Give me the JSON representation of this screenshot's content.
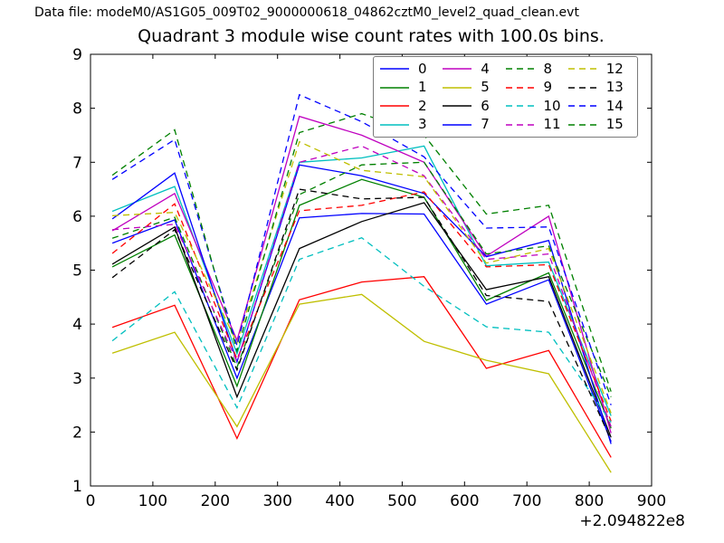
{
  "header": {
    "data_file": "Data file: modeM0/AS1G05_009T02_9000000618_04862cztM0_level2_quad_clean.evt"
  },
  "chart_data": {
    "type": "line",
    "title": "Quadrant 3 module wise count rates with 100.0s bins.",
    "xlabel": "",
    "ylabel": "",
    "x_offset_label": "+2.094822e8",
    "xlim": [
      0,
      900
    ],
    "ylim": [
      1,
      9
    ],
    "x_ticks": [
      0,
      100,
      200,
      300,
      400,
      500,
      600,
      700,
      800,
      900
    ],
    "y_ticks": [
      1,
      2,
      3,
      4,
      5,
      6,
      7,
      8,
      9
    ],
    "grid": false,
    "legend_position": "upper right",
    "legend_columns": 4,
    "frame_color": "#000000",
    "x": [
      35,
      135,
      235,
      335,
      435,
      535,
      635,
      735,
      835
    ],
    "series": [
      {
        "name": "0",
        "color": "#0000ff",
        "dash": false,
        "values": [
          5.5,
          5.93,
          3.0,
          5.97,
          6.05,
          6.04,
          4.37,
          4.82,
          1.82
        ]
      },
      {
        "name": "1",
        "color": "#008000",
        "dash": false,
        "values": [
          5.06,
          5.65,
          2.85,
          6.2,
          6.68,
          6.35,
          4.44,
          4.95,
          2.07
        ]
      },
      {
        "name": "2",
        "color": "#ff0000",
        "dash": false,
        "values": [
          3.94,
          4.35,
          1.88,
          4.45,
          4.78,
          4.88,
          3.18,
          3.51,
          1.53
        ]
      },
      {
        "name": "3",
        "color": "#00bfbf",
        "dash": false,
        "values": [
          6.09,
          6.55,
          3.45,
          7.0,
          7.08,
          7.3,
          5.08,
          5.15,
          2.3
        ]
      },
      {
        "name": "4",
        "color": "#bf00bf",
        "dash": false,
        "values": [
          5.73,
          6.42,
          3.7,
          7.85,
          7.5,
          7.0,
          5.26,
          6.0,
          1.98
        ]
      },
      {
        "name": "5",
        "color": "#bfbf00",
        "dash": false,
        "values": [
          3.46,
          3.85,
          2.1,
          4.37,
          4.55,
          3.68,
          3.33,
          3.08,
          1.25
        ]
      },
      {
        "name": "6",
        "color": "#000000",
        "dash": false,
        "values": [
          5.11,
          5.8,
          2.65,
          5.4,
          5.9,
          6.25,
          4.64,
          4.88,
          1.9
        ]
      },
      {
        "name": "7",
        "color": "#0000ff",
        "dash": false,
        "values": [
          5.95,
          6.8,
          3.3,
          6.95,
          6.75,
          6.42,
          5.25,
          5.55,
          1.78
        ]
      },
      {
        "name": "8",
        "color": "#008000",
        "dash": true,
        "values": [
          5.59,
          5.98,
          3.2,
          6.4,
          6.95,
          7.0,
          5.3,
          5.45,
          2.65
        ]
      },
      {
        "name": "9",
        "color": "#ff0000",
        "dash": true,
        "values": [
          5.31,
          6.23,
          3.35,
          6.1,
          6.2,
          6.45,
          5.06,
          5.1,
          2.2
        ]
      },
      {
        "name": "10",
        "color": "#00bfbf",
        "dash": true,
        "values": [
          3.69,
          4.6,
          2.45,
          5.2,
          5.6,
          4.7,
          3.95,
          3.85,
          2.18
        ]
      },
      {
        "name": "11",
        "color": "#bf00bf",
        "dash": true,
        "values": [
          5.75,
          5.85,
          3.3,
          7.0,
          7.3,
          6.75,
          5.2,
          5.3,
          2.1
        ]
      },
      {
        "name": "12",
        "color": "#bfbf00",
        "dash": true,
        "values": [
          6.01,
          6.07,
          3.65,
          7.38,
          6.85,
          6.73,
          5.13,
          5.4,
          2.35
        ]
      },
      {
        "name": "13",
        "color": "#000000",
        "dash": true,
        "values": [
          4.86,
          5.75,
          3.15,
          6.5,
          6.32,
          6.35,
          4.53,
          4.42,
          1.85
        ]
      },
      {
        "name": "14",
        "color": "#0000ff",
        "dash": true,
        "values": [
          6.68,
          7.42,
          3.6,
          8.25,
          7.75,
          7.1,
          5.78,
          5.8,
          2.5
        ]
      },
      {
        "name": "15",
        "color": "#008000",
        "dash": true,
        "values": [
          6.76,
          7.6,
          3.5,
          7.55,
          7.9,
          7.5,
          6.04,
          6.2,
          2.75
        ]
      }
    ]
  }
}
